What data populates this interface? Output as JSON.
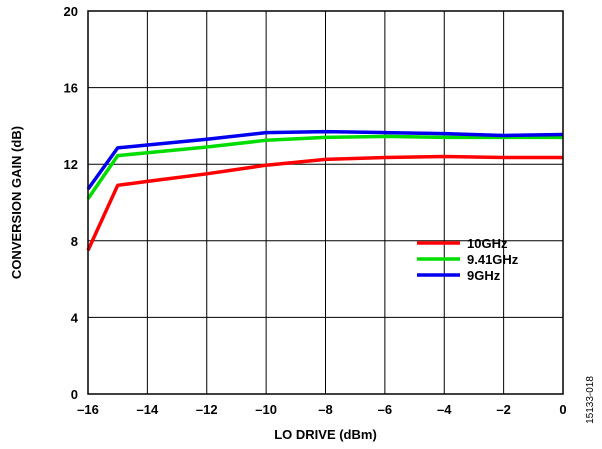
{
  "chart_data": {
    "type": "line",
    "xlabel": "LO DRIVE (dBm)",
    "ylabel": "CONVERSION GAIN (dB)",
    "xlim": [
      -16,
      0
    ],
    "ylim": [
      0,
      20
    ],
    "x_ticks": [
      -16,
      -14,
      -12,
      -10,
      -8,
      -6,
      -4,
      -2,
      0
    ],
    "x_tick_labels": [
      "–16",
      "–14",
      "–12",
      "–10",
      "–8",
      "–6",
      "–4",
      "–2",
      "0"
    ],
    "y_ticks": [
      0,
      4,
      8,
      12,
      16,
      20
    ],
    "y_tick_labels": [
      "0",
      "4",
      "8",
      "12",
      "16",
      "20"
    ],
    "grid": true,
    "legend_position": "center-right",
    "series": [
      {
        "name": "10GHz",
        "color": "#ff0000",
        "x": [
          -16,
          -15,
          -14,
          -12,
          -10,
          -8,
          -6,
          -4,
          -2,
          0
        ],
        "y": [
          7.5,
          10.9,
          11.1,
          11.5,
          11.95,
          12.25,
          12.35,
          12.4,
          12.35,
          12.35
        ]
      },
      {
        "name": "9.41GHz",
        "color": "#00dd00",
        "x": [
          -16,
          -15,
          -14,
          -12,
          -10,
          -8,
          -6,
          -4,
          -2,
          0
        ],
        "y": [
          10.2,
          12.45,
          12.6,
          12.9,
          13.25,
          13.4,
          13.45,
          13.4,
          13.4,
          13.4
        ]
      },
      {
        "name": "9GHz",
        "color": "#0000ee",
        "x": [
          -16,
          -15,
          -14,
          -12,
          -10,
          -8,
          -6,
          -4,
          -2,
          0
        ],
        "y": [
          10.7,
          12.85,
          13.0,
          13.3,
          13.65,
          13.7,
          13.65,
          13.6,
          13.5,
          13.55
        ]
      }
    ],
    "figure_id": "15133-018"
  }
}
